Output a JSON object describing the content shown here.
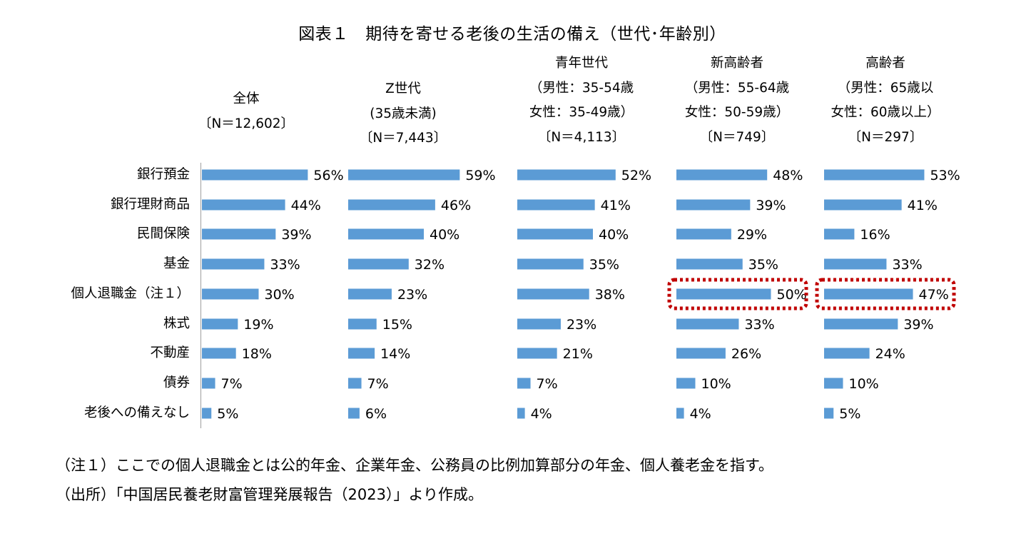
{
  "chart_data": {
    "type": "bar",
    "orientation": "horizontal",
    "title": "図表１　期待を寄せる老後の生活の備え（世代･年齢別）",
    "categories": [
      "銀行預金",
      "銀行理財商品",
      "民間保険",
      "基金",
      "個人退職金（注１）",
      "株式",
      "不動産",
      "債券",
      "老後への備えなし"
    ],
    "series": [
      {
        "header": [
          "全体",
          "〔N＝12,602〕"
        ],
        "values": [
          56,
          44,
          39,
          33,
          30,
          19,
          18,
          7,
          5
        ]
      },
      {
        "header": [
          "Z世代",
          "(35歳未満)",
          "〔N＝7,443〕"
        ],
        "values": [
          59,
          46,
          40,
          32,
          23,
          15,
          14,
          7,
          6
        ]
      },
      {
        "header": [
          "青年世代",
          "（男性：35-54歳",
          "女性：35-49歳）",
          "〔N＝4,113〕"
        ],
        "values": [
          52,
          41,
          40,
          35,
          38,
          23,
          21,
          7,
          4
        ]
      },
      {
        "header": [
          "新高齢者",
          "（男性：55-64歳",
          "女性：50-59歳）",
          "〔N＝749〕"
        ],
        "values": [
          48,
          39,
          29,
          35,
          50,
          33,
          26,
          10,
          4
        ]
      },
      {
        "header": [
          "高齢者",
          "（男性：65歳以",
          "女性：60歳以上）",
          "〔N＝297〕"
        ],
        "values": [
          53,
          41,
          16,
          33,
          47,
          39,
          24,
          10,
          5
        ]
      }
    ],
    "value_suffix": "%",
    "highlighted": [
      {
        "series_index": 3,
        "category_index": 4
      },
      {
        "series_index": 4,
        "category_index": 4
      }
    ],
    "bar_color": "#5b9bd5",
    "highlight_color": "#c00000"
  },
  "notes": [
    "（注１）ここでの個人退職金とは公的年金、企業年金、公務員の比例加算部分の年金、個人養老金を指す。",
    "（出所）「中国居民養老財富管理発展報告（2023）」より作成。"
  ]
}
